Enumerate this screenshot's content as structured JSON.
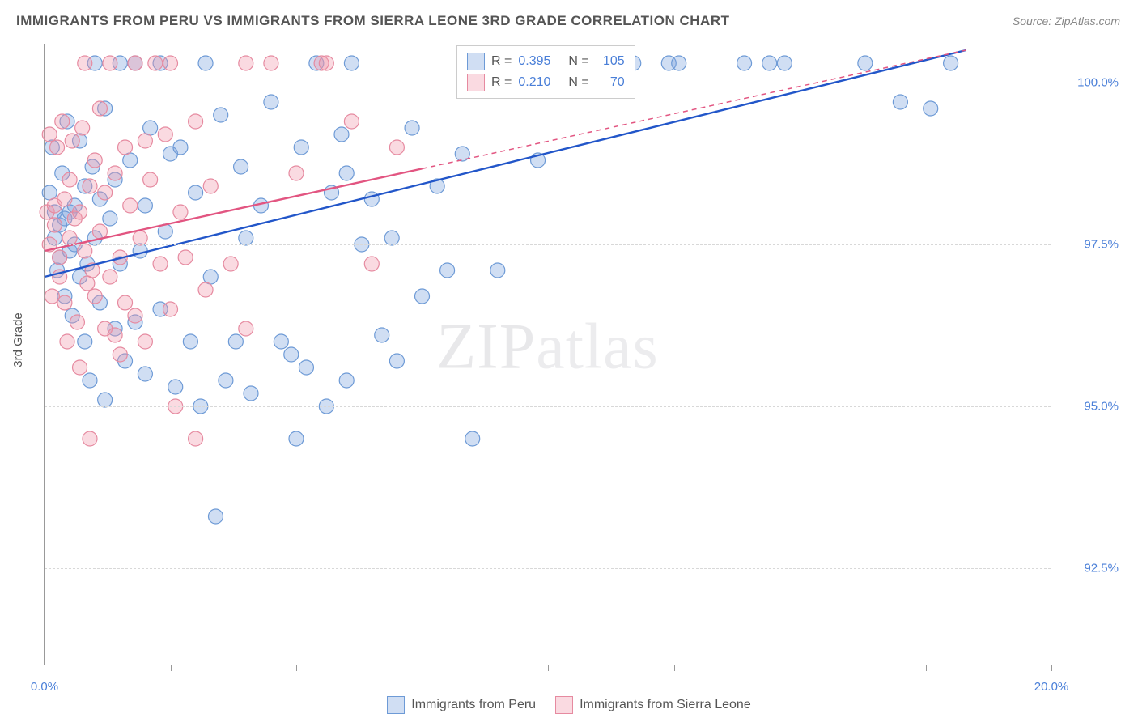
{
  "title": "IMMIGRANTS FROM PERU VS IMMIGRANTS FROM SIERRA LEONE 3RD GRADE CORRELATION CHART",
  "source_label": "Source: ZipAtlas.com",
  "watermark_a": "ZIP",
  "watermark_b": "atlas",
  "yaxis_label": "3rd Grade",
  "chart": {
    "type": "scatter",
    "xlim": [
      0,
      20
    ],
    "ylim": [
      91.0,
      100.6
    ],
    "x_ticks": [
      0,
      2.5,
      5,
      7.5,
      10,
      12.5,
      15,
      17.5,
      20
    ],
    "x_tick_labels": {
      "0": "0.0%",
      "20": "20.0%"
    },
    "y_ticks": [
      92.5,
      95.0,
      97.5,
      100.0
    ],
    "y_tick_labels": {
      "92.5": "92.5%",
      "95.0": "95.0%",
      "97.5": "97.5%",
      "100.0": "100.0%"
    },
    "background_color": "#ffffff",
    "grid_color": "#d8d8d8",
    "axis_color": "#999999",
    "marker_radius": 9,
    "marker_stroke_width": 1.2,
    "trend_line_width": 2.4,
    "series": [
      {
        "name": "Immigrants from Peru",
        "fill": "rgba(120,160,220,0.35)",
        "stroke": "#6d9ad6",
        "line_color": "#2256c9",
        "trend": {
          "x1": 0,
          "y1": 97.0,
          "x2": 18.3,
          "y2": 100.5
        },
        "points": [
          [
            0.1,
            98.3
          ],
          [
            0.15,
            99.0
          ],
          [
            0.2,
            97.6
          ],
          [
            0.2,
            98.0
          ],
          [
            0.25,
            97.1
          ],
          [
            0.3,
            97.3
          ],
          [
            0.3,
            97.8
          ],
          [
            0.35,
            98.6
          ],
          [
            0.4,
            97.9
          ],
          [
            0.4,
            96.7
          ],
          [
            0.45,
            99.4
          ],
          [
            0.5,
            97.4
          ],
          [
            0.5,
            98.0
          ],
          [
            0.55,
            96.4
          ],
          [
            0.6,
            98.1
          ],
          [
            0.6,
            97.5
          ],
          [
            0.7,
            99.1
          ],
          [
            0.7,
            97.0
          ],
          [
            0.8,
            96.0
          ],
          [
            0.8,
            98.4
          ],
          [
            0.85,
            97.2
          ],
          [
            0.9,
            95.4
          ],
          [
            0.95,
            98.7
          ],
          [
            1.0,
            100.3
          ],
          [
            1.0,
            97.6
          ],
          [
            1.1,
            96.6
          ],
          [
            1.1,
            98.2
          ],
          [
            1.2,
            99.6
          ],
          [
            1.2,
            95.1
          ],
          [
            1.3,
            97.9
          ],
          [
            1.4,
            96.2
          ],
          [
            1.4,
            98.5
          ],
          [
            1.5,
            100.3
          ],
          [
            1.5,
            97.2
          ],
          [
            1.6,
            95.7
          ],
          [
            1.7,
            98.8
          ],
          [
            1.8,
            96.3
          ],
          [
            1.8,
            100.3
          ],
          [
            1.9,
            97.4
          ],
          [
            2.0,
            98.1
          ],
          [
            2.0,
            95.5
          ],
          [
            2.1,
            99.3
          ],
          [
            2.3,
            96.5
          ],
          [
            2.3,
            100.3
          ],
          [
            2.4,
            97.7
          ],
          [
            2.5,
            98.9
          ],
          [
            2.6,
            95.3
          ],
          [
            2.7,
            99.0
          ],
          [
            2.9,
            96.0
          ],
          [
            3.0,
            98.3
          ],
          [
            3.1,
            95.0
          ],
          [
            3.2,
            100.3
          ],
          [
            3.3,
            97.0
          ],
          [
            3.4,
            93.3
          ],
          [
            3.5,
            99.5
          ],
          [
            3.6,
            95.4
          ],
          [
            3.8,
            96.0
          ],
          [
            3.9,
            98.7
          ],
          [
            4.0,
            97.6
          ],
          [
            4.1,
            95.2
          ],
          [
            4.3,
            98.1
          ],
          [
            4.5,
            99.7
          ],
          [
            4.7,
            96.0
          ],
          [
            4.9,
            95.8
          ],
          [
            5.0,
            94.5
          ],
          [
            5.1,
            99.0
          ],
          [
            5.2,
            95.6
          ],
          [
            5.4,
            100.3
          ],
          [
            5.6,
            95.0
          ],
          [
            5.7,
            98.3
          ],
          [
            5.9,
            99.2
          ],
          [
            6.0,
            95.4
          ],
          [
            6.0,
            98.6
          ],
          [
            6.1,
            100.3
          ],
          [
            6.3,
            97.5
          ],
          [
            6.5,
            98.2
          ],
          [
            6.7,
            96.1
          ],
          [
            6.9,
            97.6
          ],
          [
            7.0,
            95.7
          ],
          [
            7.3,
            99.3
          ],
          [
            7.5,
            96.7
          ],
          [
            7.8,
            98.4
          ],
          [
            8.0,
            97.1
          ],
          [
            8.3,
            98.9
          ],
          [
            8.5,
            94.5
          ],
          [
            8.7,
            100.3
          ],
          [
            9.0,
            97.1
          ],
          [
            9.2,
            100.3
          ],
          [
            9.5,
            100.3
          ],
          [
            9.8,
            98.8
          ],
          [
            10.0,
            100.3
          ],
          [
            10.2,
            100.3
          ],
          [
            10.4,
            100.4
          ],
          [
            10.5,
            100.3
          ],
          [
            11.5,
            100.3
          ],
          [
            11.7,
            100.3
          ],
          [
            12.4,
            100.3
          ],
          [
            12.6,
            100.3
          ],
          [
            13.9,
            100.3
          ],
          [
            14.4,
            100.3
          ],
          [
            14.7,
            100.3
          ],
          [
            16.3,
            100.3
          ],
          [
            17.0,
            99.7
          ],
          [
            17.6,
            99.6
          ],
          [
            18.0,
            100.3
          ]
        ]
      },
      {
        "name": "Immigrants from Sierra Leone",
        "fill": "rgba(240,150,170,0.35)",
        "stroke": "#e68aa0",
        "line_color": "#e25581",
        "line_dash_after_x": 7.5,
        "trend": {
          "x1": 0,
          "y1": 97.4,
          "x2": 18.3,
          "y2": 100.5
        },
        "points": [
          [
            0.05,
            98.0
          ],
          [
            0.1,
            99.2
          ],
          [
            0.1,
            97.5
          ],
          [
            0.15,
            96.7
          ],
          [
            0.2,
            97.8
          ],
          [
            0.2,
            98.1
          ],
          [
            0.25,
            99.0
          ],
          [
            0.3,
            97.0
          ],
          [
            0.3,
            97.3
          ],
          [
            0.35,
            99.4
          ],
          [
            0.4,
            96.6
          ],
          [
            0.4,
            98.2
          ],
          [
            0.45,
            96.0
          ],
          [
            0.5,
            97.6
          ],
          [
            0.5,
            98.5
          ],
          [
            0.55,
            99.1
          ],
          [
            0.6,
            97.9
          ],
          [
            0.65,
            96.3
          ],
          [
            0.7,
            98.0
          ],
          [
            0.7,
            95.6
          ],
          [
            0.75,
            99.3
          ],
          [
            0.8,
            97.4
          ],
          [
            0.8,
            100.3
          ],
          [
            0.85,
            96.9
          ],
          [
            0.9,
            98.4
          ],
          [
            0.9,
            94.5
          ],
          [
            0.95,
            97.1
          ],
          [
            1.0,
            98.8
          ],
          [
            1.0,
            96.7
          ],
          [
            1.1,
            99.6
          ],
          [
            1.1,
            97.7
          ],
          [
            1.2,
            96.2
          ],
          [
            1.2,
            98.3
          ],
          [
            1.3,
            97.0
          ],
          [
            1.3,
            100.3
          ],
          [
            1.4,
            96.1
          ],
          [
            1.4,
            98.6
          ],
          [
            1.5,
            97.3
          ],
          [
            1.5,
            95.8
          ],
          [
            1.6,
            99.0
          ],
          [
            1.6,
            96.6
          ],
          [
            1.7,
            98.1
          ],
          [
            1.8,
            96.4
          ],
          [
            1.8,
            100.3
          ],
          [
            1.9,
            97.6
          ],
          [
            2.0,
            99.1
          ],
          [
            2.0,
            96.0
          ],
          [
            2.1,
            98.5
          ],
          [
            2.2,
            100.3
          ],
          [
            2.3,
            97.2
          ],
          [
            2.4,
            99.2
          ],
          [
            2.5,
            96.5
          ],
          [
            2.5,
            100.3
          ],
          [
            2.6,
            95.0
          ],
          [
            2.7,
            98.0
          ],
          [
            2.8,
            97.3
          ],
          [
            3.0,
            99.4
          ],
          [
            3.0,
            94.5
          ],
          [
            3.2,
            96.8
          ],
          [
            3.3,
            98.4
          ],
          [
            3.7,
            97.2
          ],
          [
            4.0,
            100.3
          ],
          [
            4.0,
            96.2
          ],
          [
            4.5,
            100.3
          ],
          [
            5.0,
            98.6
          ],
          [
            5.5,
            100.3
          ],
          [
            5.6,
            100.3
          ],
          [
            6.1,
            99.4
          ],
          [
            6.5,
            97.2
          ],
          [
            7.0,
            99.0
          ]
        ]
      }
    ]
  },
  "legend_stats": {
    "r_label": "R =",
    "n_label": "N =",
    "rows": [
      {
        "series_idx": 0,
        "r": "0.395",
        "n": "105"
      },
      {
        "series_idx": 1,
        "r": "0.210",
        "n": "70"
      }
    ]
  },
  "legend_bottom": [
    {
      "series_idx": 0,
      "label": "Immigrants from Peru"
    },
    {
      "series_idx": 1,
      "label": "Immigrants from Sierra Leone"
    }
  ]
}
